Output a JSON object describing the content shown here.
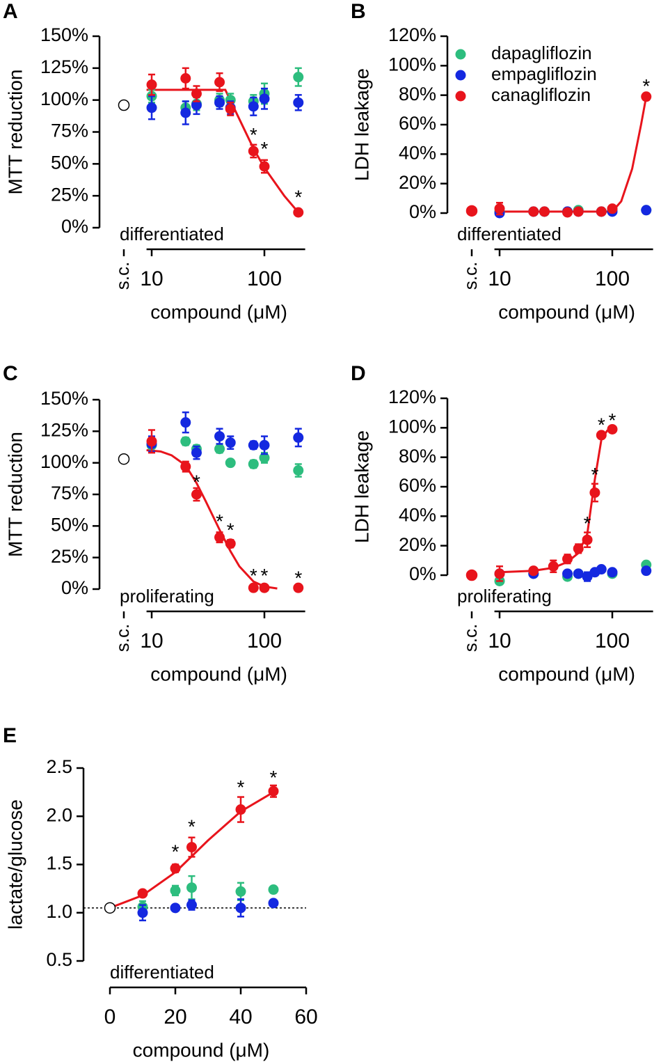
{
  "chart_data": [
    {
      "type": "scatter",
      "label": "A",
      "note": "differentiated",
      "xscale": "log",
      "xlim": [
        9,
        230
      ],
      "xticks": [
        10,
        100
      ],
      "ylim": [
        0,
        150
      ],
      "yticks": [
        {
          "value": 0,
          "label": "0%"
        },
        {
          "value": 25,
          "label": "25%"
        },
        {
          "value": 50,
          "label": "50%"
        },
        {
          "value": 75,
          "label": "75%"
        },
        {
          "value": 100,
          "label": "100%"
        },
        {
          "value": 125,
          "label": "125%"
        },
        {
          "value": 150,
          "label": "150%"
        }
      ],
      "xlabel": "compound (μM)",
      "ylabel": "MTT reduction",
      "legend": false,
      "control": {
        "label": "s.c.",
        "value": 96,
        "color": "#ffffff"
      },
      "series": [
        {
          "name": "dapagliflozin",
          "color": "#2dbd7e",
          "x": [
            10,
            20,
            25,
            40,
            50,
            80,
            100,
            200
          ],
          "values": [
            103,
            94,
            97,
            100,
            100,
            99,
            105,
            118
          ],
          "errors": [
            5,
            5,
            5,
            5,
            5,
            5,
            8,
            7
          ]
        },
        {
          "name": "empagliflozin",
          "color": "#1428e0",
          "x": [
            10,
            20,
            25,
            40,
            50,
            80,
            100,
            200
          ],
          "values": [
            94,
            90,
            96,
            98,
            94,
            95,
            101,
            98
          ],
          "errors": [
            9,
            9,
            7,
            5,
            5,
            7,
            8,
            6
          ]
        },
        {
          "name": "canagliflozin",
          "color": "#e8141c",
          "x": [
            10,
            20,
            25,
            40,
            50,
            80,
            100,
            200
          ],
          "values": [
            112,
            117,
            105,
            114,
            93,
            60,
            48,
            12
          ],
          "errors": [
            8,
            8,
            6,
            7,
            5,
            5,
            5,
            2
          ]
        }
      ],
      "fit": {
        "color": "#e8141c",
        "x": [
          9,
          40,
          45,
          60,
          80,
          100,
          150,
          200
        ],
        "values": [
          108,
          108,
          108,
          85,
          62,
          47,
          25,
          12
        ]
      },
      "annotations": [
        {
          "text": "*",
          "x": 80,
          "y": 75
        },
        {
          "text": "*",
          "x": 100,
          "y": 64
        },
        {
          "text": "*",
          "x": 200,
          "y": 26
        }
      ]
    },
    {
      "type": "scatter",
      "label": "B",
      "note": "differentiated",
      "xscale": "log",
      "xlim": [
        9,
        230
      ],
      "xticks": [
        10,
        100
      ],
      "ylim": [
        0,
        120
      ],
      "yticks": [
        {
          "value": 0,
          "label": "0%"
        },
        {
          "value": 20,
          "label": "20%"
        },
        {
          "value": 40,
          "label": "40%"
        },
        {
          "value": 60,
          "label": "60%"
        },
        {
          "value": 80,
          "label": "80%"
        },
        {
          "value": 100,
          "label": "100%"
        },
        {
          "value": 120,
          "label": "120%"
        }
      ],
      "xlabel": "compound (μM)",
      "ylabel": "LDH leakage",
      "legend": true,
      "control": {
        "label": "s.c.",
        "value": 1.5,
        "color": "#e8141c"
      },
      "series": [
        {
          "name": "dapagliflozin",
          "color": "#2dbd7e",
          "x": [
            10,
            20,
            25,
            40,
            50,
            80,
            100,
            200
          ],
          "values": [
            1,
            1,
            1,
            1,
            2,
            1,
            2,
            2
          ],
          "errors": [
            1,
            1,
            1,
            1,
            1,
            1,
            1,
            1
          ]
        },
        {
          "name": "empagliflozin",
          "color": "#1428e0",
          "x": [
            10,
            20,
            25,
            40,
            50,
            80,
            100,
            200
          ],
          "values": [
            0,
            1,
            1,
            1,
            1,
            1,
            1,
            2
          ],
          "errors": [
            1,
            1,
            1,
            1,
            1,
            1,
            1,
            1
          ]
        },
        {
          "name": "canagliflozin",
          "color": "#e8141c",
          "x": [
            10,
            20,
            25,
            40,
            50,
            80,
            100,
            200
          ],
          "values": [
            3,
            1,
            1,
            0.5,
            1,
            1,
            3,
            79
          ],
          "errors": [
            4,
            1,
            1,
            1,
            1,
            1,
            1,
            2
          ]
        }
      ],
      "fit": {
        "color": "#e8141c",
        "x": [
          9,
          100,
          120,
          150,
          180,
          200
        ],
        "values": [
          1,
          1,
          8,
          30,
          60,
          79
        ]
      },
      "annotations": [
        {
          "text": "*",
          "x": 200,
          "y": 88
        }
      ]
    },
    {
      "type": "scatter",
      "label": "C",
      "note": "proliferating",
      "xscale": "log",
      "xlim": [
        9,
        230
      ],
      "xticks": [
        10,
        100
      ],
      "ylim": [
        0,
        150
      ],
      "yticks": [
        {
          "value": 0,
          "label": "0%"
        },
        {
          "value": 25,
          "label": "25%"
        },
        {
          "value": 50,
          "label": "50%"
        },
        {
          "value": 75,
          "label": "75%"
        },
        {
          "value": 100,
          "label": "100%"
        },
        {
          "value": 125,
          "label": "125%"
        },
        {
          "value": 150,
          "label": "150%"
        }
      ],
      "xlabel": "compound (μM)",
      "ylabel": "MTT reduction",
      "legend": false,
      "control": {
        "label": "s.c.",
        "value": 103,
        "color": "#ffffff"
      },
      "series": [
        {
          "name": "dapagliflozin",
          "color": "#2dbd7e",
          "x": [
            10,
            20,
            25,
            40,
            50,
            80,
            100,
            200
          ],
          "values": [
            114,
            117,
            111,
            111,
            100,
            99,
            104,
            94
          ],
          "errors": [
            5,
            3,
            3,
            3,
            2,
            3,
            4,
            5
          ]
        },
        {
          "name": "empagliflozin",
          "color": "#1428e0",
          "x": [
            10,
            20,
            25,
            40,
            50,
            80,
            100,
            200
          ],
          "values": [
            115,
            132,
            108,
            121,
            116,
            114,
            114,
            120
          ],
          "errors": [
            6,
            8,
            5,
            6,
            5,
            3,
            7,
            7
          ]
        },
        {
          "name": "canagliflozin",
          "color": "#e8141c",
          "x": [
            10,
            20,
            25,
            40,
            50,
            80,
            100,
            200
          ],
          "values": [
            117,
            97,
            75,
            41,
            36,
            1,
            1,
            1
          ],
          "errors": [
            9,
            4,
            5,
            4,
            3,
            1,
            1,
            1
          ]
        }
      ],
      "fit": {
        "color": "#e8141c",
        "x": [
          9,
          12,
          15,
          20,
          25,
          30,
          40,
          50,
          60,
          80,
          100,
          130
        ],
        "values": [
          110,
          109,
          106,
          98,
          84,
          70,
          47,
          30,
          18,
          6,
          2,
          0.5
        ]
      },
      "annotations": [
        {
          "text": "*",
          "x": 25,
          "y": 87
        },
        {
          "text": "*",
          "x": 40,
          "y": 56
        },
        {
          "text": "*",
          "x": 50,
          "y": 49
        },
        {
          "text": "*",
          "x": 80,
          "y": 13
        },
        {
          "text": "*",
          "x": 100,
          "y": 13
        },
        {
          "text": "*",
          "x": 200,
          "y": 11
        }
      ]
    },
    {
      "type": "scatter",
      "label": "D",
      "note": "proliferating",
      "xscale": "log",
      "xlim": [
        9,
        230
      ],
      "xticks": [
        10,
        100
      ],
      "ylim": [
        0,
        120
      ],
      "yticks": [
        {
          "value": 0,
          "label": "0%"
        },
        {
          "value": 20,
          "label": "20%"
        },
        {
          "value": 40,
          "label": "40%"
        },
        {
          "value": 60,
          "label": "60%"
        },
        {
          "value": 80,
          "label": "80%"
        },
        {
          "value": 100,
          "label": "100%"
        },
        {
          "value": 120,
          "label": "120%"
        }
      ],
      "xlabel": "compound (μM)",
      "ylabel": "LDH leakage",
      "legend": false,
      "control": {
        "label": "s.c.",
        "value": 0,
        "color": "#e8141c"
      },
      "series": [
        {
          "name": "dapagliflozin",
          "color": "#2dbd7e",
          "x": [
            10,
            20,
            40,
            50,
            100,
            200
          ],
          "values": [
            -4,
            1,
            -1,
            1,
            1,
            7
          ],
          "errors": [
            1,
            1,
            1,
            1,
            1,
            1
          ]
        },
        {
          "name": "empagliflozin",
          "color": "#1428e0",
          "x": [
            10,
            20,
            40,
            50,
            60,
            70,
            80,
            100,
            200
          ],
          "values": [
            1,
            1,
            1,
            1,
            -1,
            2,
            4,
            2,
            3
          ],
          "errors": [
            1,
            1,
            1,
            1,
            3,
            1,
            1,
            1,
            1
          ]
        },
        {
          "name": "canagliflozin",
          "color": "#e8141c",
          "x": [
            10,
            20,
            30,
            40,
            50,
            60,
            70,
            80,
            100
          ],
          "values": [
            1,
            3,
            6,
            11,
            18,
            24,
            56,
            95,
            99
          ],
          "errors": [
            5,
            2,
            4,
            3,
            3,
            5,
            6,
            2,
            2
          ]
        }
      ],
      "fit": {
        "color": "#e8141c",
        "x": [
          10,
          20,
          30,
          40,
          50,
          60,
          70,
          80,
          90,
          100
        ],
        "values": [
          2,
          3,
          5,
          9,
          15,
          28,
          65,
          92,
          98,
          99
        ]
      },
      "annotations": [
        {
          "text": "*",
          "x": 60,
          "y": 37
        },
        {
          "text": "*",
          "x": 70,
          "y": 70
        },
        {
          "text": "*",
          "x": 80,
          "y": 104
        },
        {
          "text": "*",
          "x": 100,
          "y": 107
        }
      ]
    },
    {
      "type": "scatter",
      "label": "E",
      "note": "differentiated",
      "xscale": "linear",
      "xlim": [
        0,
        60
      ],
      "xticks": [
        0,
        20,
        40,
        60
      ],
      "ylim": [
        0.5,
        2.5
      ],
      "yticks": [
        0.5,
        {
          "value": 1,
          "label": "1.0"
        },
        1.5,
        {
          "value": 2,
          "label": "2.0"
        },
        2.5
      ],
      "xlabel": "compound (μM)",
      "ylabel": "lactate/glucose",
      "legend": false,
      "reference_line": 1.05,
      "control": {
        "x": 0,
        "value": 1.05,
        "color": "#ffffff"
      },
      "series": [
        {
          "name": "dapagliflozin",
          "color": "#2dbd7e",
          "x": [
            10,
            20,
            25,
            40,
            50
          ],
          "values": [
            1.06,
            1.23,
            1.26,
            1.22,
            1.24
          ],
          "errors": [
            0.06,
            0.05,
            0.12,
            0.09,
            0.02
          ]
        },
        {
          "name": "empagliflozin",
          "color": "#1428e0",
          "x": [
            10,
            20,
            25,
            40,
            50
          ],
          "values": [
            1.0,
            1.05,
            1.08,
            1.05,
            1.1
          ],
          "errors": [
            0.08,
            0.02,
            0.05,
            0.09,
            0.02
          ]
        },
        {
          "name": "canagliflozin",
          "color": "#e8141c",
          "x": [
            10,
            20,
            25,
            40,
            50
          ],
          "values": [
            1.2,
            1.46,
            1.68,
            2.07,
            2.26
          ],
          "errors": [
            0.02,
            0.04,
            0.1,
            0.13,
            0.06
          ]
        }
      ],
      "fit": {
        "color": "#e8141c",
        "x": [
          0,
          10,
          20,
          30,
          40,
          50
        ],
        "values": [
          1.05,
          1.18,
          1.42,
          1.75,
          2.05,
          2.25
        ]
      },
      "annotations": [
        {
          "text": "*",
          "x": 20,
          "y": 1.66
        },
        {
          "text": "*",
          "x": 25,
          "y": 1.92
        },
        {
          "text": "*",
          "x": 40,
          "y": 2.33
        },
        {
          "text": "*",
          "x": 50,
          "y": 2.43
        }
      ]
    }
  ]
}
